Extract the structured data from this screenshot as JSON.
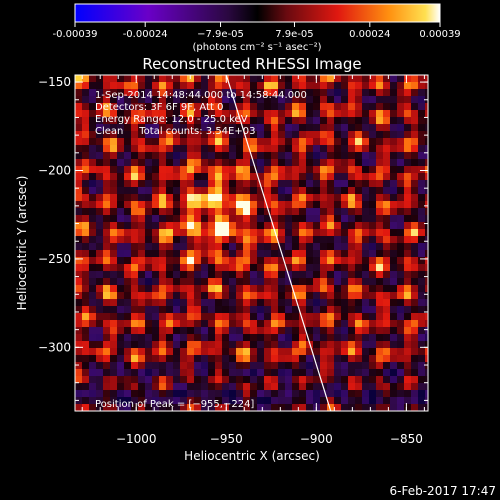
{
  "chart_data": {
    "type": "heatmap",
    "title": "Reconstructed RHESSI Image",
    "xlabel": "Heliocentric X (arcsec)",
    "ylabel": "Heliocentric Y (arcsec)",
    "xlim": [
      -1034,
      -838
    ],
    "ylim": [
      -336,
      -146
    ],
    "x_ticks": [
      -1000,
      -950,
      -900,
      -850
    ],
    "x_tick_labels": [
      "−1000",
      "−950",
      "−900",
      "−850"
    ],
    "y_ticks": [
      -150,
      -200,
      -250,
      -300
    ],
    "y_tick_labels": [
      "−150",
      "−200",
      "−250",
      "−300"
    ],
    "colorbar": {
      "ticks": [
        -0.00039,
        -0.00024,
        -7.9e-05,
        7.9e-05,
        0.00024,
        0.00039
      ],
      "tick_labels": [
        "-0.00039",
        "-0.00024",
        "−7.9e-05",
        "7.9e-05",
        "0.00024",
        "0.00039"
      ],
      "range": [
        -0.00039,
        0.00039
      ],
      "unit_label": "(photons cm⁻² s⁻¹ asec⁻²)"
    },
    "annotations": [
      "1-Sep-2014 14:48:44.000 to 14:58:44.000",
      "Detectors: 3F 6F 9F, Att 0",
      "Energy Range: 12.0 - 25.0 keV",
      "Clean     Total counts: 3.54E+03"
    ],
    "peak_label": "Position of Peak = [−955,−224]",
    "peak": {
      "x": -955,
      "y": -224
    },
    "limb_line": {
      "x_top": -950,
      "y_top": -146,
      "x_bottom": -892,
      "y_bottom": -336
    },
    "grid": false,
    "colormap": [
      "#0000ff",
      "#6a00c8",
      "#3a0a55",
      "#000000",
      "#5a0810",
      "#c81010",
      "#ff6a00",
      "#ffcc20",
      "#ffffff"
    ]
  },
  "footer": {
    "date": "6-Feb-2017 17:47"
  }
}
